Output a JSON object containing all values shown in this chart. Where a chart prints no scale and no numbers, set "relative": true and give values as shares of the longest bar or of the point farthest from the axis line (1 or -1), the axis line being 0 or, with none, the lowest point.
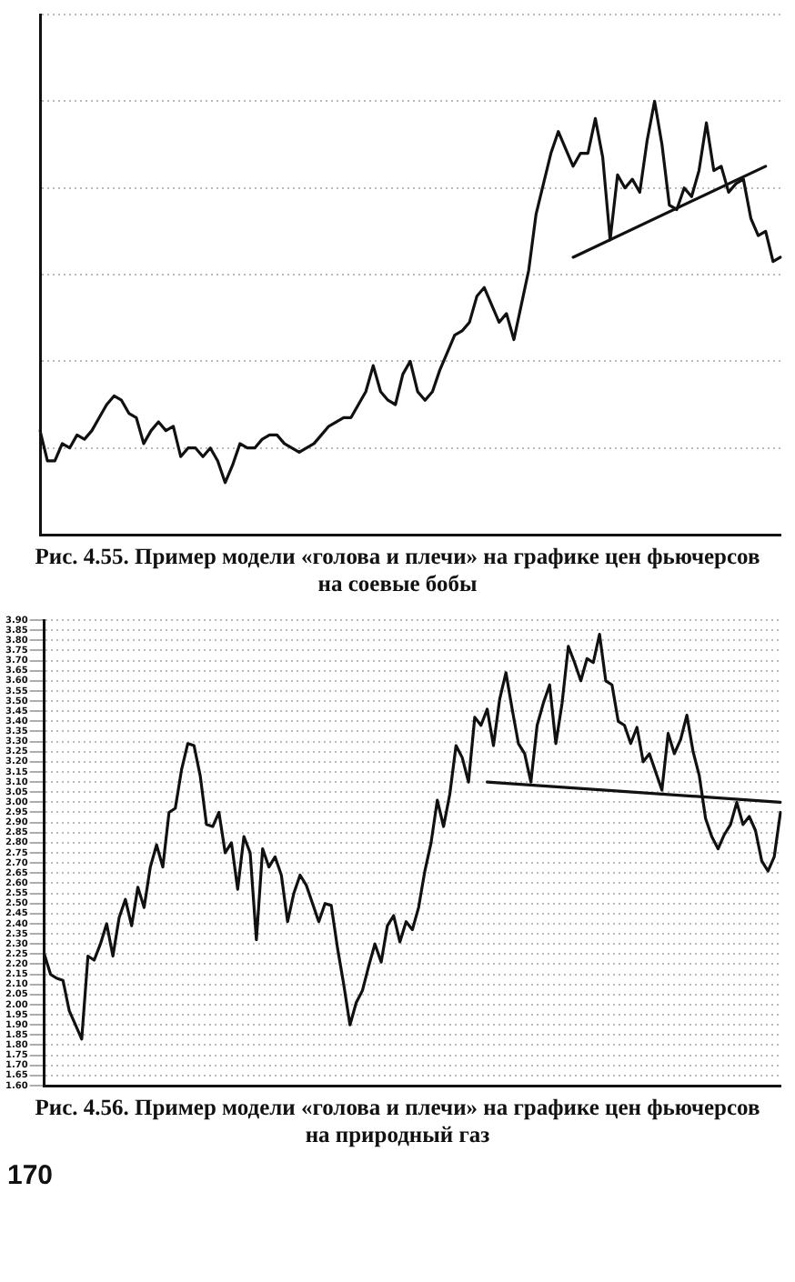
{
  "chart_data": [
    {
      "type": "line",
      "title": "Рис. 4.55. Пример модели «голова и плечи» на графике цен фьючерсов на соевые бобы",
      "relative": true,
      "grid": "y",
      "tick_labels": false,
      "marker": "none",
      "line_style": "solid",
      "categories": [
        null,
        null,
        null,
        null,
        null,
        null,
        null,
        null,
        null,
        null,
        null,
        null,
        null,
        null,
        null,
        null,
        null,
        null,
        null,
        null,
        null,
        null,
        null,
        null,
        null,
        null,
        null,
        null,
        null,
        null,
        null,
        null,
        null,
        null,
        null,
        null,
        null,
        null,
        null,
        null,
        null,
        null,
        null,
        null,
        null,
        null,
        null,
        null,
        null,
        null,
        null,
        null,
        null,
        null,
        null,
        null,
        null,
        null,
        null,
        null,
        null,
        null,
        null,
        null,
        null,
        null,
        null,
        null,
        null,
        null,
        null,
        null,
        null,
        null,
        null,
        null,
        null,
        null,
        null,
        null,
        null,
        null,
        null,
        null,
        null,
        null,
        null,
        null,
        null,
        null,
        null,
        null,
        null,
        null,
        null,
        null,
        null,
        null,
        null,
        null,
        null
      ],
      "series": [
        {
          "color": "#111111",
          "values": [
            0.24,
            0.17,
            0.17,
            0.21,
            0.2,
            0.23,
            0.22,
            0.24,
            0.27,
            0.3,
            0.32,
            0.31,
            0.28,
            0.27,
            0.21,
            0.24,
            0.26,
            0.24,
            0.25,
            0.18,
            0.2,
            0.2,
            0.18,
            0.2,
            0.17,
            0.12,
            0.16,
            0.21,
            0.2,
            0.2,
            0.22,
            0.23,
            0.23,
            0.21,
            0.2,
            0.19,
            0.2,
            0.21,
            0.23,
            0.25,
            0.26,
            0.27,
            0.27,
            0.3,
            0.33,
            0.39,
            0.33,
            0.31,
            0.3,
            0.37,
            0.4,
            0.33,
            0.31,
            0.33,
            0.38,
            0.42,
            0.46,
            0.47,
            0.49,
            0.55,
            0.57,
            0.53,
            0.49,
            0.51,
            0.45,
            0.53,
            0.61,
            0.74,
            0.81,
            0.88,
            0.93,
            0.89,
            0.85,
            0.88,
            0.88,
            0.96,
            0.87,
            0.68,
            0.83,
            0.8,
            0.82,
            0.79,
            0.91,
            1,
            0.9,
            0.76,
            0.75,
            0.8,
            0.78,
            0.84,
            0.95,
            0.84,
            0.85,
            0.79,
            0.81,
            0.82,
            0.73,
            0.69,
            0.7,
            0.63,
            0.64
          ]
        },
        {
          "type": "line",
          "color": "#111111",
          "values": [
            null,
            null,
            null,
            null,
            null,
            null,
            null,
            null,
            null,
            null,
            null,
            null,
            null,
            null,
            null,
            null,
            null,
            null,
            null,
            null,
            null,
            null,
            null,
            null,
            null,
            null,
            null,
            null,
            null,
            null,
            null,
            null,
            null,
            null,
            null,
            null,
            null,
            null,
            null,
            null,
            null,
            null,
            null,
            null,
            null,
            null,
            null,
            null,
            null,
            null,
            null,
            null,
            null,
            null,
            null,
            null,
            null,
            null,
            null,
            null,
            null,
            null,
            null,
            null,
            null,
            null,
            null,
            null,
            null,
            null,
            null,
            null,
            0.64,
            null,
            null,
            null,
            null,
            null,
            null,
            null,
            null,
            null,
            null,
            null,
            null,
            null,
            null,
            null,
            null,
            null,
            null,
            null,
            null,
            null,
            null,
            null,
            null,
            null,
            0.85,
            null,
            null
          ]
        }
      ]
    },
    {
      "type": "line",
      "title": "Рис. 4.56. Пример модели «голова и плечи» на графике цен фьючерсов на природный газ",
      "annotations": [
        "170"
      ],
      "grid": "y",
      "tick_labels": "y",
      "marker": "none",
      "line_style": "solid",
      "ylim": [
        1.6,
        3.9
      ],
      "yticks": [
        {
          "value": 1.6,
          "label": "1.60"
        },
        {
          "value": 1.65,
          "label": "1.65"
        },
        {
          "value": 1.7,
          "label": "1.70"
        },
        {
          "value": 1.75,
          "label": "1.75"
        },
        {
          "value": 1.8,
          "label": "1.80"
        },
        {
          "value": 1.85,
          "label": "1.85"
        },
        {
          "value": 1.9,
          "label": "1.90"
        },
        {
          "value": 1.95,
          "label": "1.95"
        },
        {
          "value": 2.0,
          "label": "2.00"
        },
        {
          "value": 2.05,
          "label": "2.05"
        },
        {
          "value": 2.1,
          "label": "2.10"
        },
        {
          "value": 2.15,
          "label": "2.15"
        },
        {
          "value": 2.2,
          "label": "2.20"
        },
        {
          "value": 2.25,
          "label": "2.25"
        },
        {
          "value": 2.3,
          "label": "2.30"
        },
        {
          "value": 2.35,
          "label": "2.35"
        },
        {
          "value": 2.4,
          "label": "2.40"
        },
        {
          "value": 2.45,
          "label": "2.45"
        },
        {
          "value": 2.5,
          "label": "2.50"
        },
        {
          "value": 2.55,
          "label": "2.55"
        },
        {
          "value": 2.6,
          "label": "2.60"
        },
        {
          "value": 2.65,
          "label": "2.65"
        },
        {
          "value": 2.7,
          "label": "2.70"
        },
        {
          "value": 2.75,
          "label": "2.75"
        },
        {
          "value": 2.8,
          "label": "2.80"
        },
        {
          "value": 2.85,
          "label": "2.85"
        },
        {
          "value": 2.9,
          "label": "2.90"
        },
        {
          "value": 2.95,
          "label": "2.95"
        },
        {
          "value": 3.0,
          "label": "3.00"
        },
        {
          "value": 3.05,
          "label": "3.05"
        },
        {
          "value": 3.1,
          "label": "3.10"
        },
        {
          "value": 3.15,
          "label": "3.15"
        },
        {
          "value": 3.2,
          "label": "3.20"
        },
        {
          "value": 3.25,
          "label": "3.25"
        },
        {
          "value": 3.3,
          "label": "3.30"
        },
        {
          "value": 3.35,
          "label": "3.35"
        },
        {
          "value": 3.4,
          "label": "3.40"
        },
        {
          "value": 3.45,
          "label": "3.45"
        },
        {
          "value": 3.5,
          "label": "3.50"
        },
        {
          "value": 3.55,
          "label": "3.55"
        },
        {
          "value": 3.6,
          "label": "3.60"
        },
        {
          "value": 3.65,
          "label": "3.65"
        },
        {
          "value": 3.7,
          "label": "3.70"
        },
        {
          "value": 3.75,
          "label": "3.75"
        },
        {
          "value": 3.8,
          "label": "3.80"
        },
        {
          "value": 3.85,
          "label": "3.85"
        },
        {
          "value": 3.9,
          "label": "3.90"
        }
      ],
      "categories": [
        null,
        null,
        null,
        null,
        null,
        null,
        null,
        null,
        null,
        null,
        null,
        null,
        null,
        null,
        null,
        null,
        null,
        null,
        null,
        null,
        null,
        null,
        null,
        null,
        null,
        null,
        null,
        null,
        null,
        null,
        null,
        null,
        null,
        null,
        null,
        null,
        null,
        null,
        null,
        null,
        null,
        null,
        null,
        null,
        null,
        null,
        null,
        null,
        null,
        null,
        null,
        null,
        null,
        null,
        null,
        null,
        null,
        null,
        null,
        null,
        null,
        null,
        null,
        null,
        null,
        null,
        null,
        null,
        null,
        null,
        null,
        null,
        null,
        null,
        null,
        null,
        null,
        null,
        null,
        null,
        null,
        null,
        null,
        null,
        null,
        null,
        null,
        null,
        null,
        null,
        null,
        null,
        null,
        null,
        null,
        null,
        null,
        null,
        null,
        null,
        null,
        null,
        null,
        null,
        null,
        null,
        null,
        null,
        null,
        null,
        null,
        null,
        null,
        null,
        null,
        null,
        null,
        null,
        null
      ],
      "series": [
        {
          "color": "#111111",
          "values": [
            2.25,
            2.15,
            2.13,
            2.12,
            1.97,
            1.9,
            1.83,
            2.24,
            2.22,
            2.3,
            2.4,
            2.24,
            2.43,
            2.52,
            2.39,
            2.58,
            2.48,
            2.68,
            2.79,
            2.68,
            2.95,
            2.97,
            3.16,
            3.29,
            3.28,
            3.13,
            2.89,
            2.88,
            2.95,
            2.75,
            2.8,
            2.57,
            2.83,
            2.75,
            2.32,
            2.77,
            2.68,
            2.73,
            2.64,
            2.41,
            2.55,
            2.64,
            2.59,
            2.5,
            2.41,
            2.5,
            2.49,
            2.28,
            2.1,
            1.9,
            2.01,
            2.07,
            2.19,
            2.3,
            2.21,
            2.39,
            2.44,
            2.31,
            2.41,
            2.37,
            2.48,
            2.66,
            2.8,
            3.01,
            2.88,
            3.04,
            3.28,
            3.22,
            3.1,
            3.42,
            3.38,
            3.46,
            3.28,
            3.51,
            3.64,
            3.46,
            3.29,
            3.24,
            3.1,
            3.38,
            3.49,
            3.58,
            3.29,
            3.49,
            3.77,
            3.69,
            3.6,
            3.71,
            3.69,
            3.83,
            3.6,
            3.58,
            3.4,
            3.38,
            3.29,
            3.37,
            3.2,
            3.24,
            3.15,
            3.06,
            3.34,
            3.24,
            3.31,
            3.43,
            3.25,
            3.13,
            2.92,
            2.83,
            2.77,
            2.84,
            2.89,
            3.0,
            2.89,
            2.93,
            2.86,
            2.71,
            2.66,
            2.73,
            2.95
          ]
        },
        {
          "type": "line",
          "color": "#111111",
          "values": [
            null,
            null,
            null,
            null,
            null,
            null,
            null,
            null,
            null,
            null,
            null,
            null,
            null,
            null,
            null,
            null,
            null,
            null,
            null,
            null,
            null,
            null,
            null,
            null,
            null,
            null,
            null,
            null,
            null,
            null,
            null,
            null,
            null,
            null,
            null,
            null,
            null,
            null,
            null,
            null,
            null,
            null,
            null,
            null,
            null,
            null,
            null,
            null,
            null,
            null,
            null,
            null,
            null,
            null,
            null,
            null,
            null,
            null,
            null,
            null,
            null,
            null,
            null,
            null,
            null,
            null,
            null,
            null,
            null,
            null,
            null,
            3.1,
            null,
            null,
            null,
            null,
            null,
            null,
            null,
            null,
            null,
            null,
            null,
            null,
            null,
            null,
            null,
            null,
            null,
            null,
            null,
            null,
            null,
            null,
            null,
            null,
            null,
            null,
            null,
            null,
            null,
            null,
            null,
            null,
            null,
            null,
            null,
            null,
            null,
            null,
            null,
            null,
            null,
            null,
            null,
            null,
            null,
            null,
            3.0
          ]
        }
      ]
    }
  ]
}
